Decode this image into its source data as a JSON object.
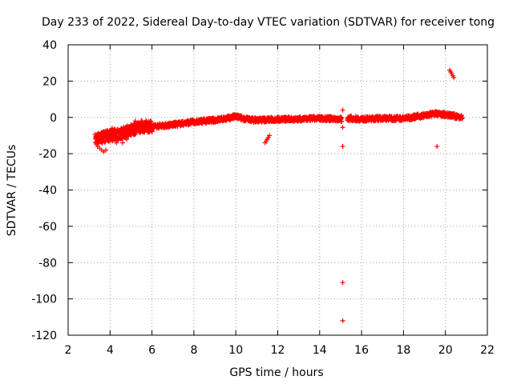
{
  "chart_data": {
    "type": "scatter",
    "title": "Day 233 of 2022, Sidereal Day-to-day VTEC variation (SDTVAR) for receiver tong",
    "xlabel": "GPS time / hours",
    "ylabel": "SDTVAR / TECUs",
    "xlim": [
      2,
      22
    ],
    "ylim": [
      -120,
      40
    ],
    "x_ticks": [
      2,
      4,
      6,
      8,
      10,
      12,
      14,
      16,
      18,
      20,
      22
    ],
    "y_ticks": [
      -120,
      -100,
      -80,
      -60,
      -40,
      -20,
      0,
      20,
      40
    ],
    "grid": true,
    "marker": "+",
    "color": "#ff0000",
    "series": [
      {
        "name": "SDTVAR",
        "main_band": {
          "x": [
            3.3,
            3.6,
            4.0,
            4.5,
            5.0,
            5.5,
            6.0,
            7.0,
            8.0,
            9.0,
            9.6,
            10.0,
            10.5,
            11.0,
            12.0,
            13.0,
            14.0,
            15.0,
            15.5,
            16.0,
            17.0,
            18.0,
            19.0,
            19.5,
            20.0,
            20.8
          ],
          "y": [
            -12,
            -11,
            -10,
            -9,
            -7,
            -5,
            -5,
            -4,
            -2.5,
            -1.5,
            -0.5,
            0.5,
            -1,
            -1.5,
            -1,
            -1,
            -0.5,
            -1,
            -0.5,
            -1,
            -0.5,
            -0.5,
            1,
            2,
            1.5,
            0
          ]
        },
        "outliers": {
          "x": [
            3.4,
            3.5,
            3.6,
            3.7,
            3.8,
            4.1,
            4.3,
            4.6,
            4.8,
            5.0,
            5.2,
            5.5,
            11.4,
            11.45,
            11.5,
            11.55,
            11.6,
            15.1,
            15.1,
            15.1,
            15.1,
            15.1,
            19.6,
            20.2,
            20.25,
            20.3,
            20.35,
            20.4
          ],
          "y": [
            -16,
            -17,
            -18,
            -19,
            -18,
            -6,
            -14,
            -14,
            -12,
            -4,
            -2,
            -3,
            -14,
            -13,
            -12,
            -11,
            -10,
            4,
            -5.5,
            -16,
            -91,
            -112,
            -16,
            26,
            25,
            24,
            23,
            22
          ]
        }
      }
    ]
  }
}
